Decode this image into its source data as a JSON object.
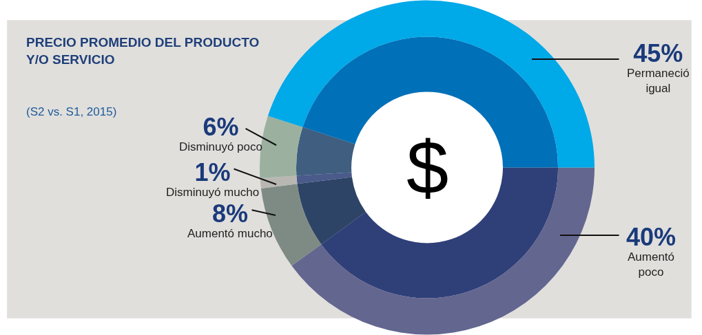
{
  "chart_data": {
    "type": "donut",
    "title": "PRECIO PROMEDIO DEL PRODUCTO Y/O SERVICIO",
    "subtitle": "(S2 vs. S1, 2015)",
    "categories": [
      "Aumentó poco",
      "Aumentó mucho",
      "Disminuyó mucho",
      "Disminuyó poco",
      "Permaneció igual"
    ],
    "series": [
      {
        "values": [
          40,
          8,
          1,
          6,
          45
        ],
        "colors": [
          "#2f3f78",
          "#2d4466",
          "#4a5a8a",
          "#3f5e80",
          "#0070b8"
        ]
      },
      {
        "values": [
          40,
          8,
          1,
          6,
          45
        ],
        "colors": [
          "#63668f",
          "#7e8b84",
          "#b9b7b2",
          "#9bb09f",
          "#00a9e8"
        ],
        "value_labels": [
          "40%",
          "8%",
          "1%",
          "6%",
          "45%"
        ]
      }
    ],
    "annotations": [
      "$"
    ],
    "legend": false
  }
}
